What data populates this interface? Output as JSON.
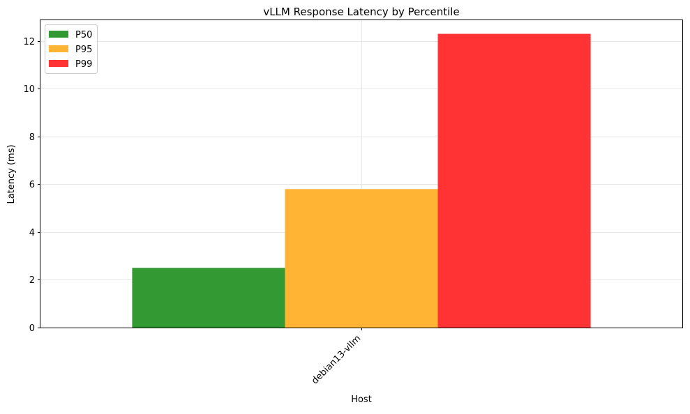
{
  "chart_data": {
    "type": "bar",
    "title": "vLLM Response Latency by Percentile",
    "xlabel": "Host",
    "ylabel": "Latency (ms)",
    "categories": [
      "debian13-vllm"
    ],
    "series": [
      {
        "name": "P50",
        "values": [
          2.5
        ],
        "color": "#339933"
      },
      {
        "name": "P95",
        "values": [
          5.8
        ],
        "color": "#ffb533"
      },
      {
        "name": "P99",
        "values": [
          12.3
        ],
        "color": "#ff3333"
      }
    ],
    "ylim": [
      0,
      12.9
    ],
    "yticks": [
      0,
      2,
      4,
      6,
      8,
      10,
      12
    ],
    "grid": true,
    "legend_position": "top-left"
  }
}
